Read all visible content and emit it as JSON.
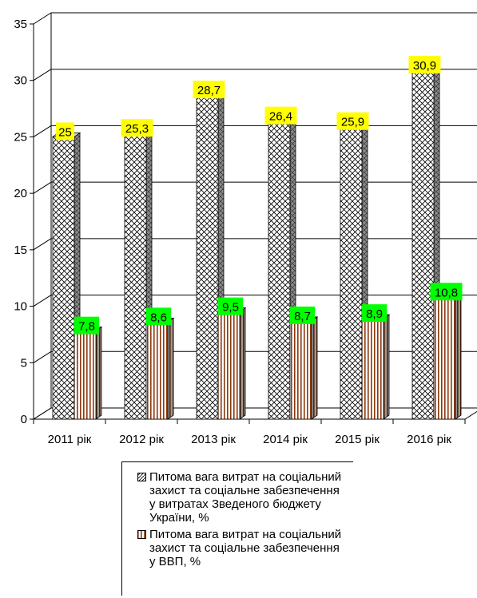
{
  "chart_data": {
    "type": "bar",
    "categories": [
      "2011 рік",
      "2012 рік",
      "2013 рік",
      "2014 рік",
      "2015 рік",
      "2016 рік"
    ],
    "series": [
      {
        "name": "Питома вага витрат на соціальний захист та соціальне забезпечення у витратах Зведеного бюджету України, %",
        "values": [
          25,
          25.3,
          28.7,
          26.4,
          25.9,
          30.9
        ],
        "data_labels": [
          "25",
          "25,3",
          "28,7",
          "26,4",
          "25,9",
          "30,9"
        ],
        "label_color": "#ffff00",
        "pattern": "diagonal-crosshatch"
      },
      {
        "name": "Питома вага витрат на соціальний захист та соціальне забезпечення у ВВП, %",
        "values": [
          7.8,
          8.6,
          9.5,
          8.7,
          8.9,
          10.8
        ],
        "data_labels": [
          "7,8",
          "8,6",
          "9,5",
          "8,7",
          "8,9",
          "10,8"
        ],
        "label_color": "#00ff00",
        "pattern": "vertical-stripes",
        "stripe_color": "#8b3a0e"
      }
    ],
    "y_ticks": [
      "0",
      "5",
      "10",
      "15",
      "20",
      "25",
      "30",
      "35"
    ],
    "ylim": [
      0,
      35
    ],
    "grid": true,
    "style": "3d-columns",
    "legend_position": "bottom"
  }
}
